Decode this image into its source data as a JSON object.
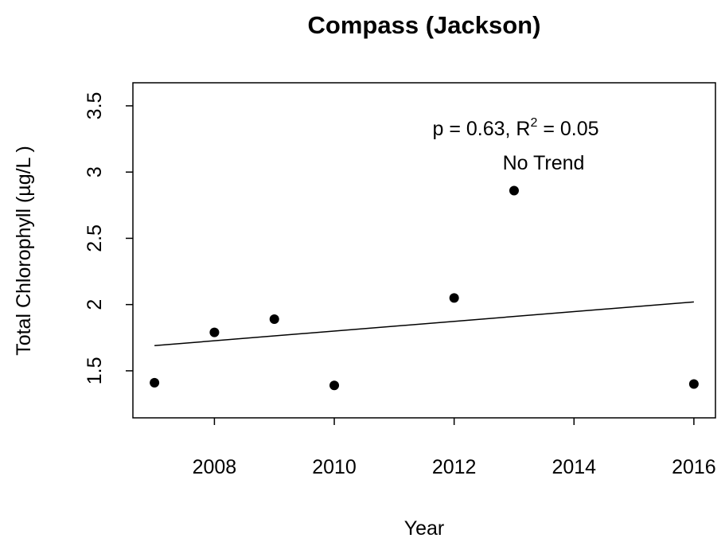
{
  "chart_data": {
    "type": "scatter",
    "title": "Compass (Jackson)",
    "x_label": "Year",
    "y_label": "Total Chlorophyll (µg/L )",
    "x": [
      2007,
      2008,
      2009,
      2010,
      2012,
      2013,
      2016
    ],
    "values": [
      1.41,
      1.79,
      1.89,
      1.39,
      2.05,
      2.86,
      1.4
    ],
    "color": "#000000",
    "trend": {
      "x": [
        2007,
        2016
      ],
      "values": [
        1.69,
        2.02
      ]
    },
    "annotation": {
      "prefix": "p = 0.63, R",
      "superscript": "2",
      "suffix": " = 0.05",
      "verdict": "No Trend"
    },
    "xlim": [
      2006.64,
      2016.36
    ],
    "xticks": [
      2008,
      2010,
      2012,
      2014,
      2016
    ],
    "ylim": [
      1.145,
      3.674
    ],
    "yticks": [
      1.5,
      2.0,
      2.5,
      3.0,
      3.5
    ]
  }
}
